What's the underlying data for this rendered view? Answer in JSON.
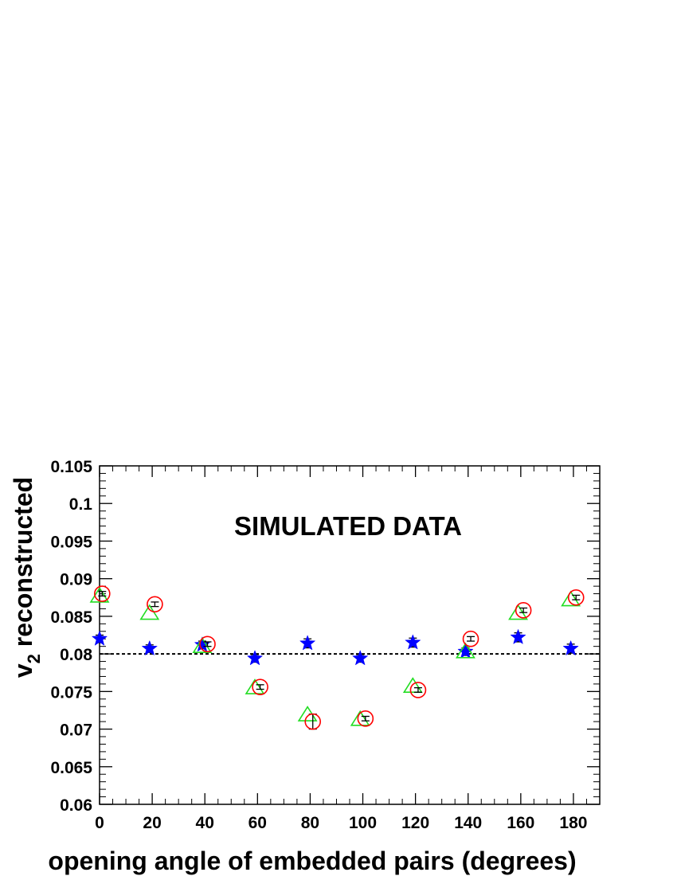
{
  "chart_data": {
    "type": "scatter",
    "title": "",
    "annotation": "SIMULATED DATA",
    "xlabel": "opening angle of embedded pairs (degrees)",
    "ylabel_main": "v",
    "ylabel_sub": "2",
    "ylabel_rest": " reconstructed",
    "xlim": [
      0,
      190
    ],
    "ylim": [
      0.06,
      0.105
    ],
    "xticks": [
      0,
      20,
      40,
      60,
      80,
      100,
      120,
      140,
      160,
      180
    ],
    "xtick_labels": [
      "0",
      "20",
      "40",
      "60",
      "80",
      "100",
      "120",
      "140",
      "160",
      "180"
    ],
    "yticks": [
      0.06,
      0.065,
      0.07,
      0.075,
      0.08,
      0.085,
      0.09,
      0.095,
      0.1,
      0.105
    ],
    "ytick_labels": [
      "0.06",
      "0.065",
      "0.07",
      "0.075",
      "0.08",
      "0.085",
      "0.09",
      "0.095",
      "0.1",
      "0.105"
    ],
    "reference_line": {
      "y": 0.08,
      "style": "dotted"
    },
    "grid": false,
    "series": [
      {
        "marker": "star",
        "color": "#0000ff",
        "points": [
          {
            "x": 0,
            "y": 0.082,
            "err": 0.0005
          },
          {
            "x": 19,
            "y": 0.0807,
            "err": 0.0005
          },
          {
            "x": 39,
            "y": 0.0812,
            "err": 0.0005
          },
          {
            "x": 59,
            "y": 0.0794,
            "err": 0.0005
          },
          {
            "x": 79,
            "y": 0.0814,
            "err": 0.0006
          },
          {
            "x": 99,
            "y": 0.0794,
            "err": 0.0005
          },
          {
            "x": 119,
            "y": 0.0815,
            "err": 0.0006
          },
          {
            "x": 139,
            "y": 0.0803,
            "err": 0.0005
          },
          {
            "x": 159,
            "y": 0.0822,
            "err": 0.0006
          },
          {
            "x": 179,
            "y": 0.0807,
            "err": 0.0006
          }
        ]
      },
      {
        "marker": "open-triangle",
        "color": "#22dd22",
        "points": [
          {
            "x": 0,
            "y": 0.0877
          },
          {
            "x": 19,
            "y": 0.0854
          },
          {
            "x": 39,
            "y": 0.081
          },
          {
            "x": 59,
            "y": 0.0755
          },
          {
            "x": 79,
            "y": 0.0719
          },
          {
            "x": 99,
            "y": 0.0713
          },
          {
            "x": 119,
            "y": 0.0757
          },
          {
            "x": 139,
            "y": 0.0803
          },
          {
            "x": 159,
            "y": 0.0854
          },
          {
            "x": 179,
            "y": 0.0872
          }
        ]
      },
      {
        "marker": "open-circle",
        "color": "#ff0000",
        "points": [
          {
            "x": 1,
            "y": 0.088,
            "err": 0.0003
          },
          {
            "x": 21,
            "y": 0.0866,
            "err": 0.0003
          },
          {
            "x": 41,
            "y": 0.0813,
            "err": 0.0003
          },
          {
            "x": 61,
            "y": 0.0756,
            "err": 0.0003
          },
          {
            "x": 81,
            "y": 0.071,
            "err": 0.001
          },
          {
            "x": 101,
            "y": 0.0714,
            "err": 0.0003
          },
          {
            "x": 121,
            "y": 0.0752,
            "err": 0.0003
          },
          {
            "x": 141,
            "y": 0.082,
            "err": 0.0003
          },
          {
            "x": 161,
            "y": 0.0858,
            "err": 0.0003
          },
          {
            "x": 181,
            "y": 0.0875,
            "err": 0.0003
          }
        ]
      }
    ]
  }
}
